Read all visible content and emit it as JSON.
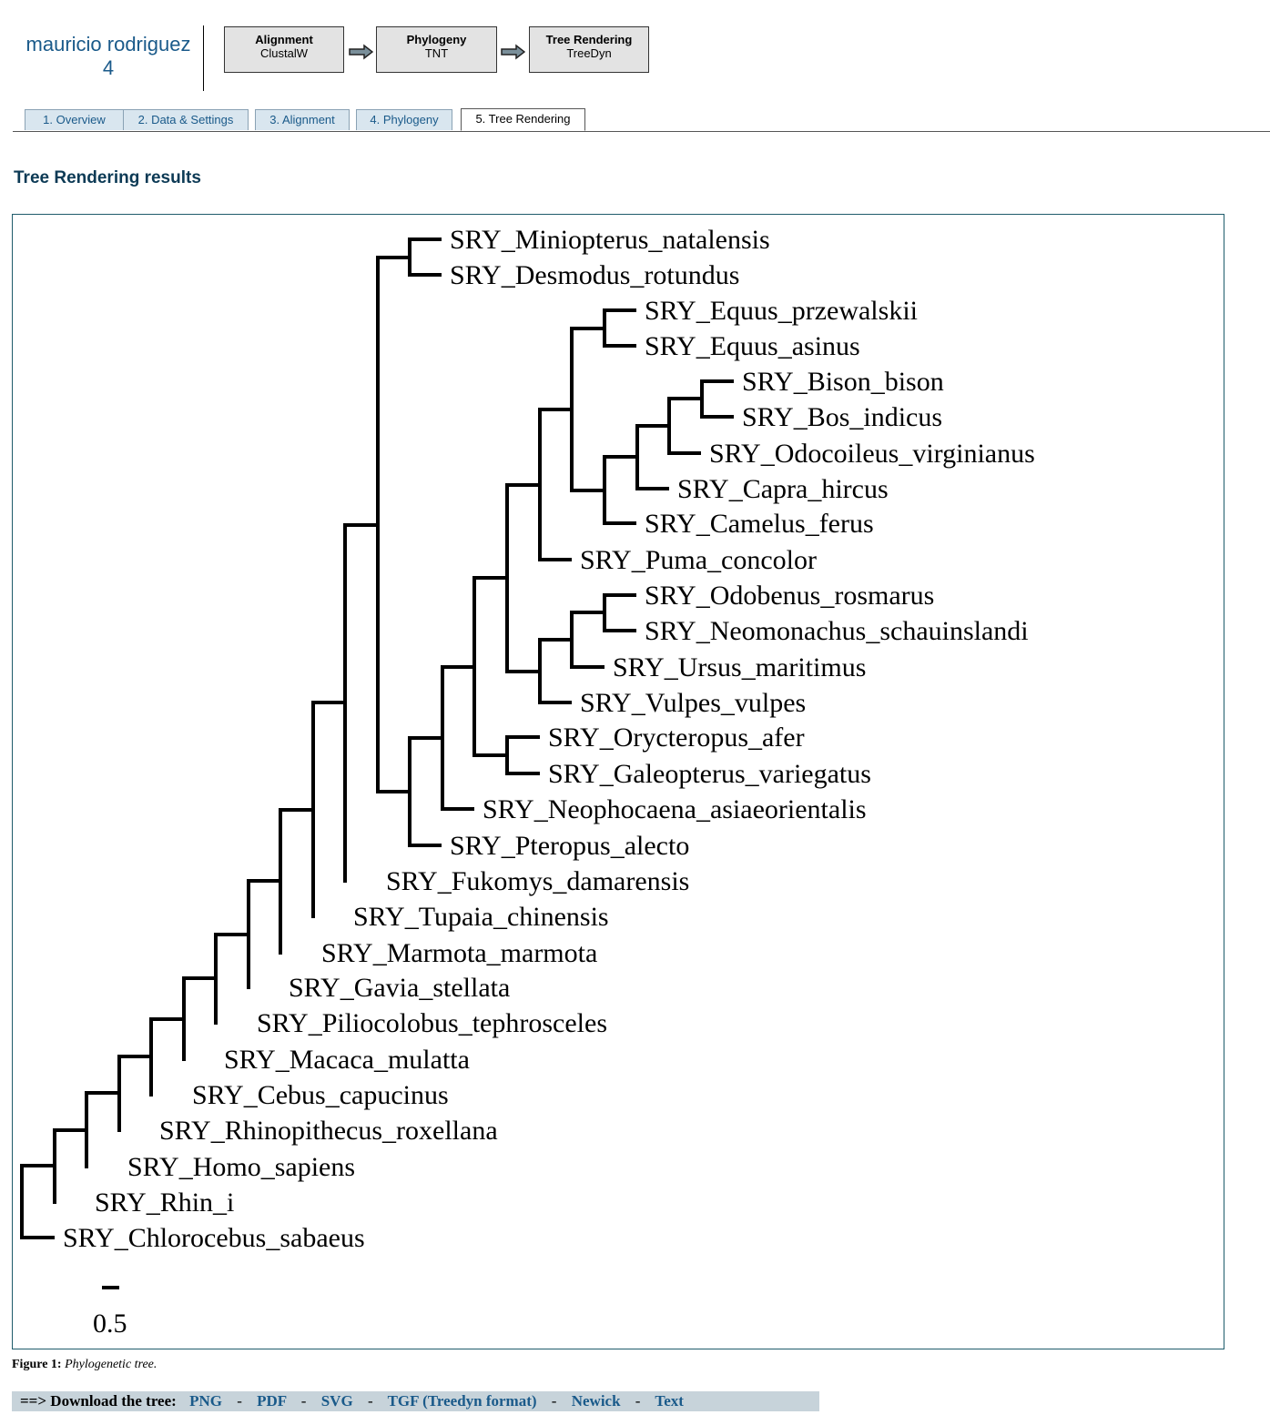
{
  "header": {
    "project_name": "mauricio rodriguez",
    "project_number": "4",
    "pipeline": [
      {
        "title": "Alignment",
        "tool": "ClustalW"
      },
      {
        "title": "Phylogeny",
        "tool": "TNT"
      },
      {
        "title": "Tree Rendering",
        "tool": "TreeDyn"
      }
    ]
  },
  "tabs": [
    {
      "label": "1. Overview"
    },
    {
      "label": "2. Data & Settings"
    },
    {
      "label": "3. Alignment"
    },
    {
      "label": "4. Phylogeny"
    },
    {
      "label": "5. Tree Rendering",
      "active": true
    }
  ],
  "results": {
    "heading": "Tree Rendering results"
  },
  "tree": {
    "leaves": [
      "SRY_Miniopterus_natalensis",
      "SRY_Desmodus_rotundus",
      "SRY_Equus_przewalskii",
      "SRY_Equus_asinus",
      "SRY_Bison_bison",
      "SRY_Bos_indicus",
      "SRY_Odocoileus_virginianus",
      "SRY_Capra_hircus",
      "SRY_Camelus_ferus",
      "SRY_Puma_concolor",
      "SRY_Odobenus_rosmarus",
      "SRY_Neomonachus_schauinslandi",
      "SRY_Ursus_maritimus",
      "SRY_Vulpes_vulpes",
      "SRY_Orycteropus_afer",
      "SRY_Galeopterus_variegatus",
      "SRY_Neophocaena_asiaeorientalis",
      "SRY_Pteropus_alecto",
      "SRY_Fukomys_damarensis",
      "SRY_Tupaia_chinensis",
      "SRY_Marmota_marmota",
      "SRY_Gavia_stellata",
      "SRY_Piliocolobus_tephrosceles",
      "SRY_Macaca_mulatta",
      "SRY_Cebus_capucinus",
      "SRY_Rhinopithecus_roxellana",
      "SRY_Homo_sapiens",
      "SRY_Rhin_i",
      "SRY_Chlorocebus_sabaeus"
    ],
    "scale_bar_label": "0.5"
  },
  "figure_caption": {
    "label": "Figure 1:",
    "text": "Phylogenetic tree."
  },
  "download": {
    "prefix": "==> Download the tree:",
    "separator": "-",
    "links": [
      "PNG",
      "PDF",
      "SVG",
      "TGF (Treedyn format)",
      "Newick",
      "Text"
    ]
  }
}
